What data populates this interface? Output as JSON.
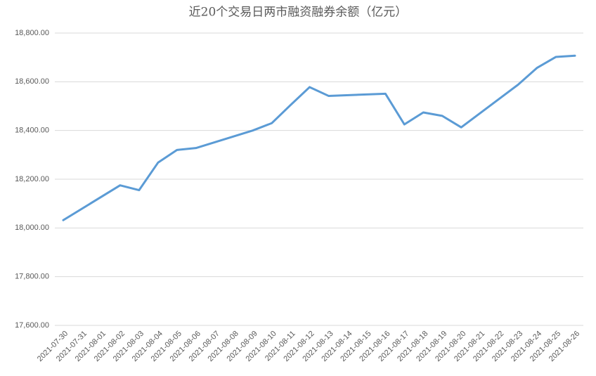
{
  "chart_data": {
    "type": "line",
    "title": "近20个交易日两市融资融券余额（亿元）",
    "x": [
      "2021-07-30",
      "2021-08-02",
      "2021-08-03",
      "2021-08-04",
      "2021-08-05",
      "2021-08-06",
      "2021-08-09",
      "2021-08-10",
      "2021-08-11",
      "2021-08-12",
      "2021-08-13",
      "2021-08-16",
      "2021-08-17",
      "2021-08-18",
      "2021-08-19",
      "2021-08-20",
      "2021-08-23",
      "2021-08-24",
      "2021-08-25",
      "2021-08-26"
    ],
    "values": [
      18032,
      18175,
      18155,
      18268,
      18320,
      18328,
      18400,
      18430,
      18505,
      18578,
      18542,
      18551,
      18425,
      18474,
      18460,
      18413,
      18588,
      18657,
      18702,
      18707
    ],
    "color": "#5b9bd5",
    "xlim": [
      "2021-07-30",
      "2021-08-26"
    ],
    "xticks": [
      "2021-07-30",
      "2021-07-31",
      "2021-08-01",
      "2021-08-02",
      "2021-08-03",
      "2021-08-04",
      "2021-08-05",
      "2021-08-06",
      "2021-08-07",
      "2021-08-08",
      "2021-08-09",
      "2021-08-10",
      "2021-08-11",
      "2021-08-12",
      "2021-08-13",
      "2021-08-14",
      "2021-08-15",
      "2021-08-16",
      "2021-08-17",
      "2021-08-18",
      "2021-08-19",
      "2021-08-20",
      "2021-08-21",
      "2021-08-22",
      "2021-08-23",
      "2021-08-24",
      "2021-08-25",
      "2021-08-26"
    ],
    "ylim": [
      17600,
      18800
    ],
    "yticks": [
      {
        "value": 17600,
        "label": "17,600.00"
      },
      {
        "value": 17800,
        "label": "17,800.00"
      },
      {
        "value": 18000,
        "label": "18,000.00"
      },
      {
        "value": 18200,
        "label": "18,200.00"
      },
      {
        "value": 18400,
        "label": "18,400.00"
      },
      {
        "value": 18600,
        "label": "18,600.00"
      },
      {
        "value": 18800,
        "label": "18,800.00"
      }
    ],
    "grid": true
  }
}
